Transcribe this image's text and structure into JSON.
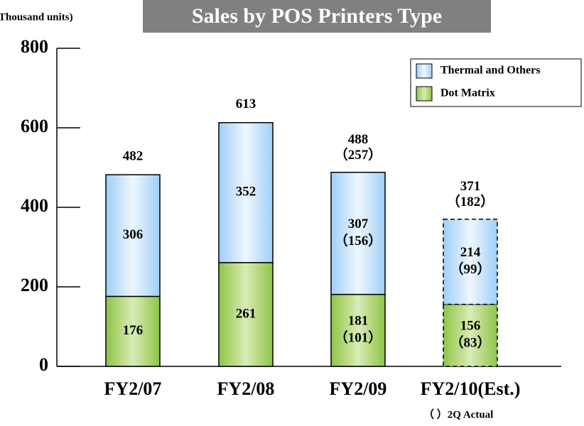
{
  "chart_data": {
    "type": "stacked_bar",
    "title": "Sales by POS Printers Type",
    "y_label": "(Thousand units)",
    "footnote": "（  ）2Q Actual",
    "categories": [
      "FY2/07",
      "FY2/08",
      "FY2/09",
      "FY2/10(Est.)"
    ],
    "series": [
      {
        "name": "Dot Matrix",
        "color": "#8fc446",
        "values": [
          176,
          261,
          181,
          156
        ],
        "value_labels_2q": [
          null,
          null,
          "（101）",
          "（83）"
        ]
      },
      {
        "name": "Thermal and Others",
        "color": "#9fcff5",
        "values": [
          306,
          352,
          307,
          214
        ],
        "value_labels_2q": [
          null,
          null,
          "（156）",
          "（99）"
        ]
      }
    ],
    "totals": [
      482,
      613,
      488,
      371
    ],
    "totals_2q_labels": [
      null,
      null,
      "（257）",
      "（182）"
    ],
    "dashed": [
      false,
      false,
      false,
      true
    ],
    "ylim": [
      0,
      800
    ],
    "yticks": [
      0,
      200,
      400,
      600,
      800
    ],
    "legend": "upper right"
  }
}
